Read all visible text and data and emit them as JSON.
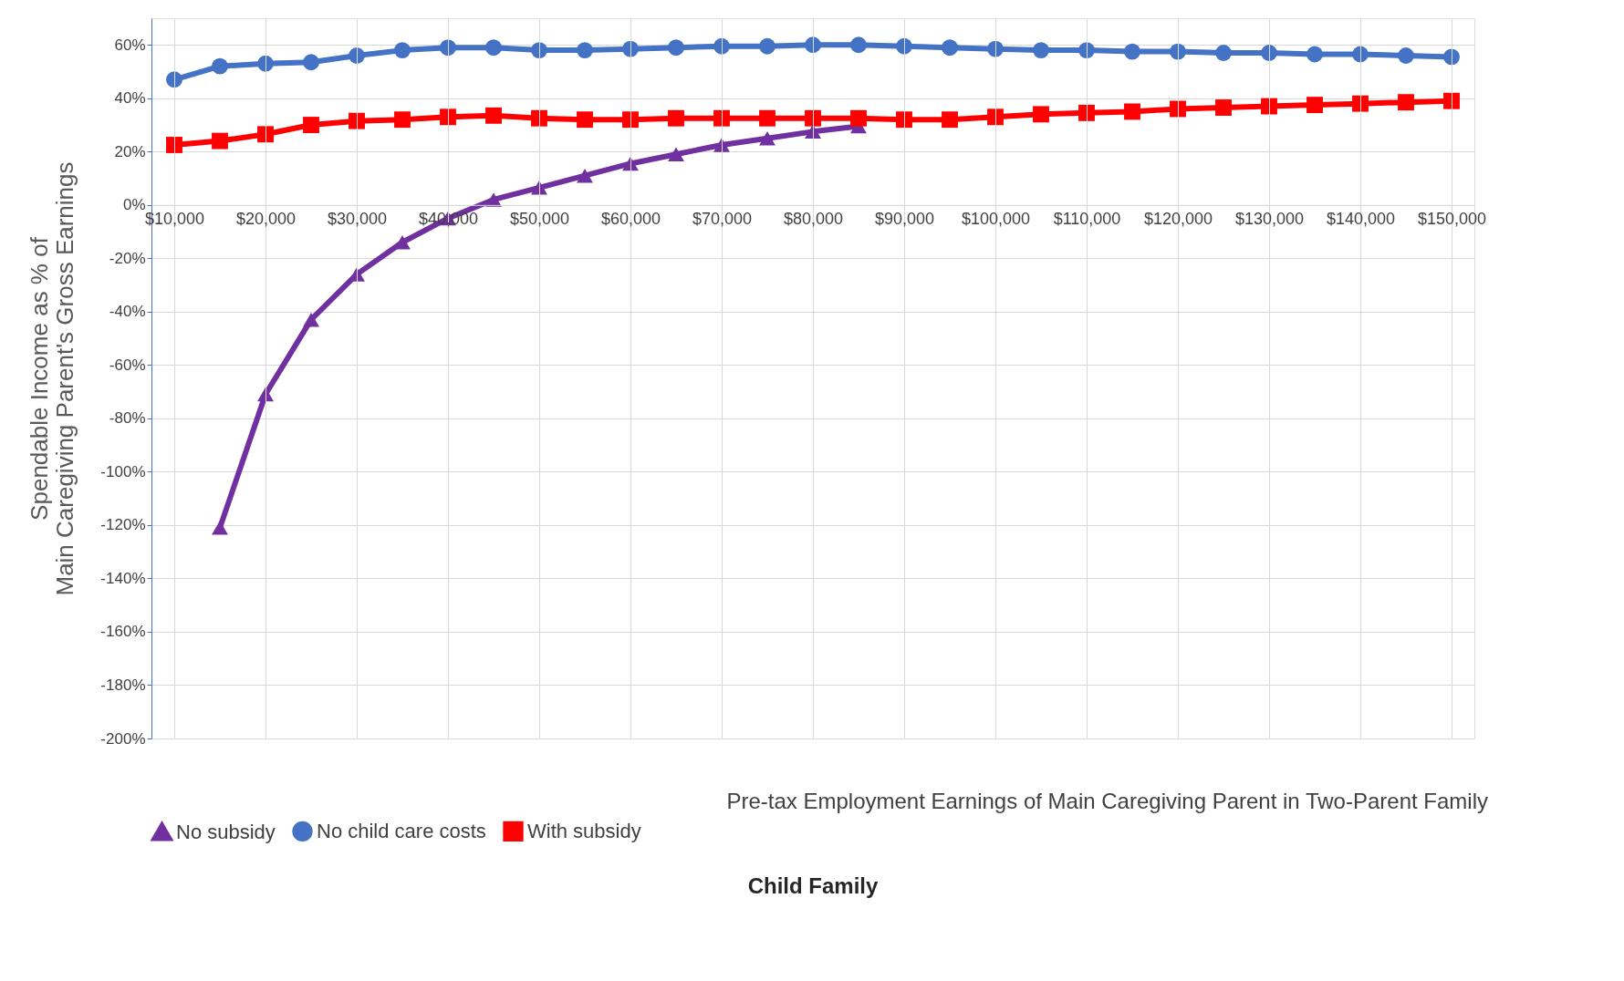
{
  "chart_data": {
    "type": "line",
    "xlabel": "Pre-tax Employment Earnings of Main Caregiving Parent in Two-Parent Family",
    "ylabel": "Spendable Income as % of\nMain Caregiving Parent's Gross Earnings",
    "annotations": [
      "Child Family"
    ],
    "x": [
      10000,
      15000,
      20000,
      25000,
      30000,
      35000,
      40000,
      45000,
      50000,
      55000,
      60000,
      65000,
      70000,
      75000,
      80000,
      85000,
      90000,
      95000,
      100000,
      105000,
      110000,
      115000,
      120000,
      125000,
      130000,
      135000,
      140000,
      145000,
      150000
    ],
    "series": [
      {
        "name": "No subsidy",
        "color": "#7030a0",
        "marker": "triangle",
        "values": [
          null,
          -121,
          -71,
          -43,
          -26,
          -14,
          -5,
          2,
          6.5,
          11,
          15.5,
          19,
          22.5,
          25,
          27.5,
          29.5,
          null,
          null,
          null,
          null,
          null,
          null,
          null,
          null,
          null,
          null,
          null,
          null,
          null
        ]
      },
      {
        "name": "No child care costs",
        "color": "#4472c4",
        "marker": "circle",
        "values": [
          47,
          52,
          53,
          53.5,
          56,
          58,
          59,
          59,
          58,
          58,
          58.5,
          59,
          59.5,
          59.5,
          60,
          60,
          59.5,
          59,
          58.5,
          58,
          58,
          57.5,
          57.5,
          57,
          57,
          56.5,
          56.5,
          56,
          55.5
        ]
      },
      {
        "name": "With subsidy",
        "color": "#ff0000",
        "marker": "square",
        "values": [
          22.5,
          24,
          26.5,
          30,
          31.5,
          32,
          33,
          33.5,
          32.5,
          32,
          32,
          32.5,
          32.5,
          32.5,
          32.5,
          32.5,
          32,
          32,
          33,
          34,
          34.5,
          35,
          36,
          36.5,
          37,
          37.5,
          38,
          38.5,
          39
        ]
      }
    ],
    "xlim": [
      7500,
      152500
    ],
    "xticks": [
      {
        "value": 10000,
        "label": "$10,000"
      },
      {
        "value": 20000,
        "label": "$20,000"
      },
      {
        "value": 30000,
        "label": "$30,000"
      },
      {
        "value": 40000,
        "label": "$40,000"
      },
      {
        "value": 50000,
        "label": "$50,000"
      },
      {
        "value": 60000,
        "label": "$60,000"
      },
      {
        "value": 70000,
        "label": "$70,000"
      },
      {
        "value": 80000,
        "label": "$80,000"
      },
      {
        "value": 90000,
        "label": "$90,000"
      },
      {
        "value": 100000,
        "label": "$100,000"
      },
      {
        "value": 110000,
        "label": "$110,000"
      },
      {
        "value": 120000,
        "label": "$120,000"
      },
      {
        "value": 130000,
        "label": "$130,000"
      },
      {
        "value": 140000,
        "label": "$140,000"
      },
      {
        "value": 150000,
        "label": "$150,000"
      }
    ],
    "ylim": [
      -200,
      70
    ],
    "yticks": [
      {
        "value": -200,
        "label": "-200%"
      },
      {
        "value": -180,
        "label": "-180%"
      },
      {
        "value": -160,
        "label": "-160%"
      },
      {
        "value": -140,
        "label": "-140%"
      },
      {
        "value": -120,
        "label": "-120%"
      },
      {
        "value": -100,
        "label": "-100%"
      },
      {
        "value": -80,
        "label": "-80%"
      },
      {
        "value": -60,
        "label": "-60%"
      },
      {
        "value": -40,
        "label": "-40%"
      },
      {
        "value": -20,
        "label": "-20%"
      },
      {
        "value": 0,
        "label": "0%"
      },
      {
        "value": 20,
        "label": "20%"
      },
      {
        "value": 40,
        "label": "40%"
      },
      {
        "value": 60,
        "label": "60%"
      }
    ],
    "grid": true,
    "legend": "bottom",
    "line_style": "solid"
  }
}
